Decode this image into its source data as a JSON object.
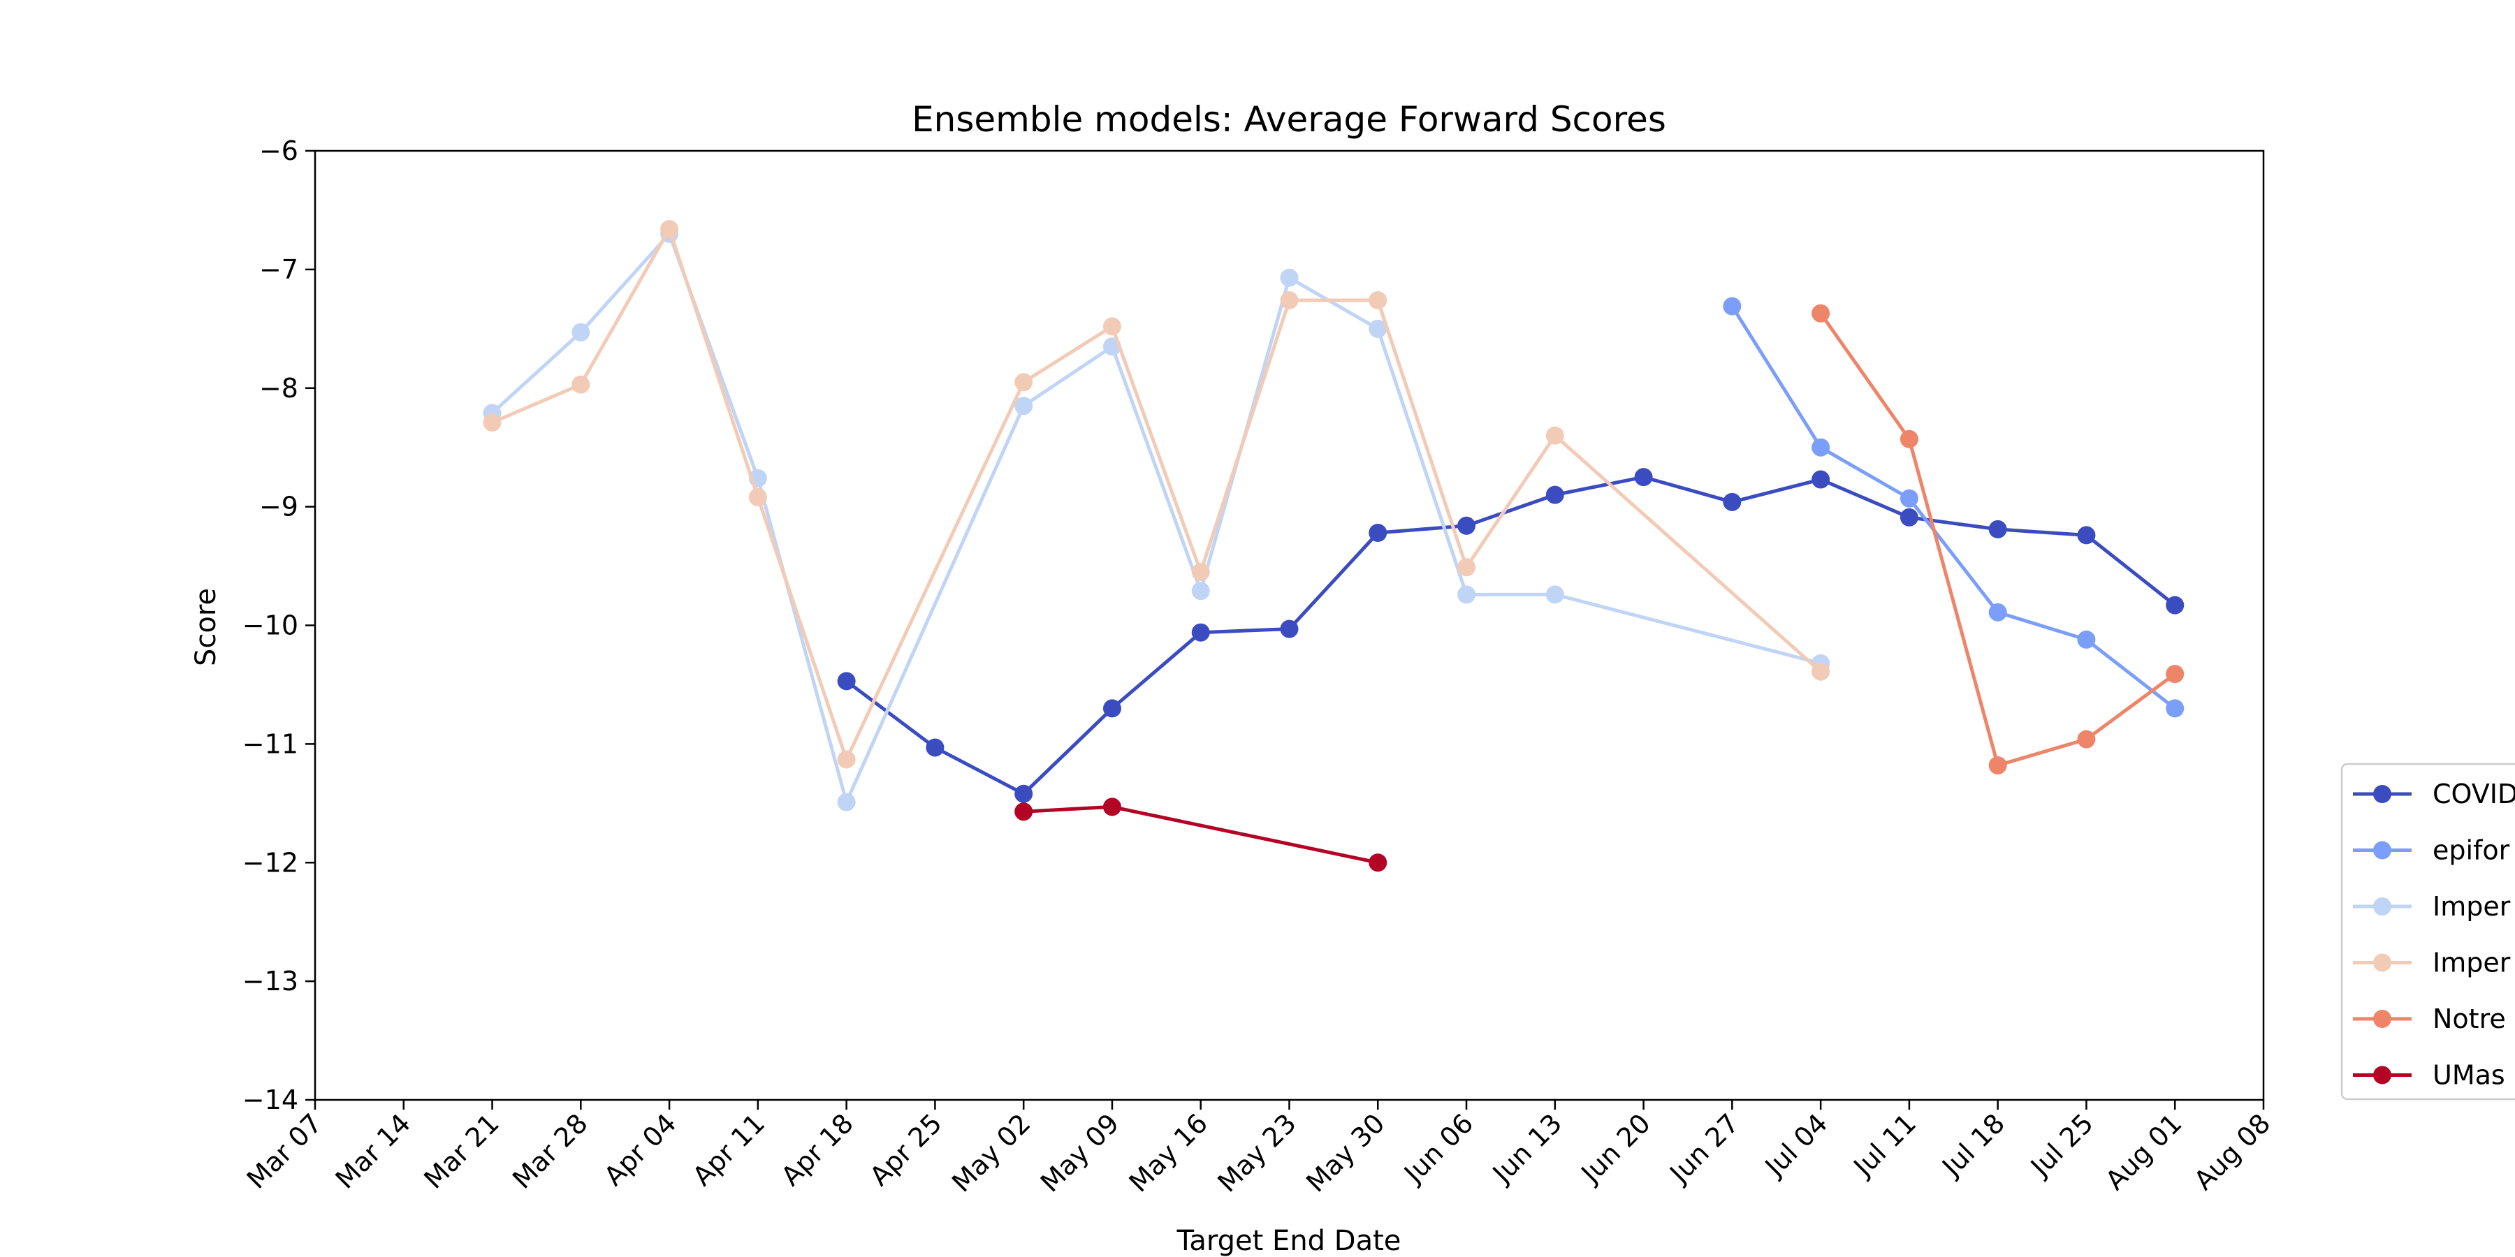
{
  "chart_data": {
    "type": "line",
    "title": "Ensemble models: Average Forward Scores",
    "xlabel": "Target End Date",
    "ylabel": "Score",
    "x_ticks": [
      "Mar 07",
      "Mar 14",
      "Mar 21",
      "Mar 28",
      "Apr 04",
      "Apr 11",
      "Apr 18",
      "Apr 25",
      "May 02",
      "May 09",
      "May 16",
      "May 23",
      "May 30",
      "Jun 06",
      "Jun 13",
      "Jun 20",
      "Jun 27",
      "Jul 04",
      "Jul 11",
      "Jul 18",
      "Jul 25",
      "Aug 01",
      "Aug 08"
    ],
    "y_ticks": [
      "−6",
      "−7",
      "−8",
      "−9",
      "−10",
      "−11",
      "−12",
      "−13",
      "−14"
    ],
    "ylim": [
      -14,
      -6
    ],
    "xlim": [
      "Mar 07",
      "Aug 08"
    ],
    "grid": false,
    "legend_placement": "right, outside plot",
    "series": [
      {
        "name": "COVID",
        "color": "#3b4cc0",
        "points": [
          [
            "Apr 18",
            -10.47
          ],
          [
            "Apr 25",
            -11.03
          ],
          [
            "May 02",
            -11.42
          ],
          [
            "May 09",
            -10.7
          ],
          [
            "May 16",
            -10.06
          ],
          [
            "May 23",
            -10.03
          ],
          [
            "May 30",
            -9.22
          ],
          [
            "Jun 06",
            -9.16
          ],
          [
            "Jun 13",
            -8.9
          ],
          [
            "Jun 20",
            -8.75
          ],
          [
            "Jun 27",
            -8.96
          ],
          [
            "Jul 04",
            -8.77
          ],
          [
            "Jul 11",
            -9.09
          ],
          [
            "Jul 18",
            -9.19
          ],
          [
            "Jul 25",
            -9.24
          ],
          [
            "Aug 01",
            -9.83
          ]
        ]
      },
      {
        "name": "epifor",
        "color": "#7b9ff9",
        "points": [
          [
            "Jun 27",
            -7.31
          ],
          [
            "Jul 04",
            -8.5
          ],
          [
            "Jul 11",
            -8.93
          ],
          [
            "Jul 18",
            -9.89
          ],
          [
            "Jul 25",
            -10.12
          ],
          [
            "Aug 01",
            -10.7
          ]
        ]
      },
      {
        "name": "Imper",
        "color": "#c0d4f5",
        "points": [
          [
            "Mar 21",
            -8.21
          ],
          [
            "Mar 28",
            -7.53
          ],
          [
            "Apr 04",
            -6.7
          ],
          [
            "Apr 11",
            -8.76
          ],
          [
            "Apr 18",
            -11.49
          ],
          [
            "May 02",
            -8.15
          ],
          [
            "May 09",
            -7.65
          ],
          [
            "May 16",
            -9.71
          ],
          [
            "May 23",
            -7.07
          ],
          [
            "May 30",
            -7.5
          ],
          [
            "Jun 06",
            -9.74
          ],
          [
            "Jun 13",
            -9.74
          ],
          [
            "Jul 04",
            -10.32
          ]
        ]
      },
      {
        "name": "Imper",
        "color": "#f2cbb7",
        "points": [
          [
            "Mar 21",
            -8.29
          ],
          [
            "Mar 28",
            -7.97
          ],
          [
            "Apr 04",
            -6.66
          ],
          [
            "Apr 11",
            -8.92
          ],
          [
            "Apr 18",
            -11.13
          ],
          [
            "May 02",
            -7.95
          ],
          [
            "May 09",
            -7.48
          ],
          [
            "May 16",
            -9.55
          ],
          [
            "May 23",
            -7.26
          ],
          [
            "May 30",
            -7.26
          ],
          [
            "Jun 06",
            -9.51
          ],
          [
            "Jun 13",
            -8.4
          ],
          [
            "Jul 04",
            -10.39
          ]
        ]
      },
      {
        "name": "Notre",
        "color": "#ee8468",
        "points": [
          [
            "Jul 04",
            -7.37
          ],
          [
            "Jul 11",
            -8.43
          ],
          [
            "Jul 18",
            -11.18
          ],
          [
            "Jul 25",
            -10.96
          ],
          [
            "Aug 01",
            -10.41
          ]
        ]
      },
      {
        "name": "UMas",
        "color": "#b40426",
        "points": [
          [
            "May 02",
            -11.57
          ],
          [
            "May 09",
            -11.53
          ],
          [
            "May 30",
            -12.0
          ]
        ]
      }
    ]
  }
}
